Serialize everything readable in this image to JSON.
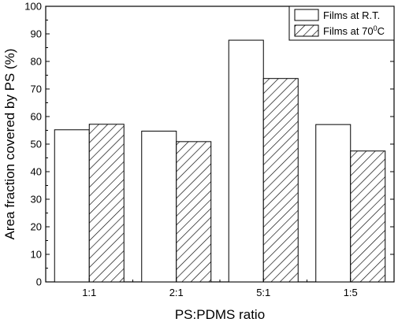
{
  "chart_data": {
    "type": "bar",
    "categories": [
      "1:1",
      "2:1",
      "5:1",
      "1:5"
    ],
    "series": [
      {
        "name": "Films at R.T.",
        "values": [
          55.2,
          54.7,
          87.7,
          57.1
        ],
        "pattern": "white"
      },
      {
        "name": "Films at 70",
        "name_sup": "0",
        "name_suffix": "C",
        "values": [
          57.2,
          50.9,
          73.8,
          47.5
        ],
        "pattern": "hatch"
      }
    ],
    "xlabel": "PS:PDMS ratio",
    "ylabel": "Area fraction covered by PS (%)",
    "ylim": [
      0,
      100
    ],
    "yticks": [
      0,
      10,
      20,
      30,
      40,
      50,
      60,
      70,
      80,
      90,
      100
    ],
    "grid": false,
    "legend_position": "top-right",
    "colors": {
      "stroke": "#000000",
      "fill": "#ffffff"
    }
  }
}
